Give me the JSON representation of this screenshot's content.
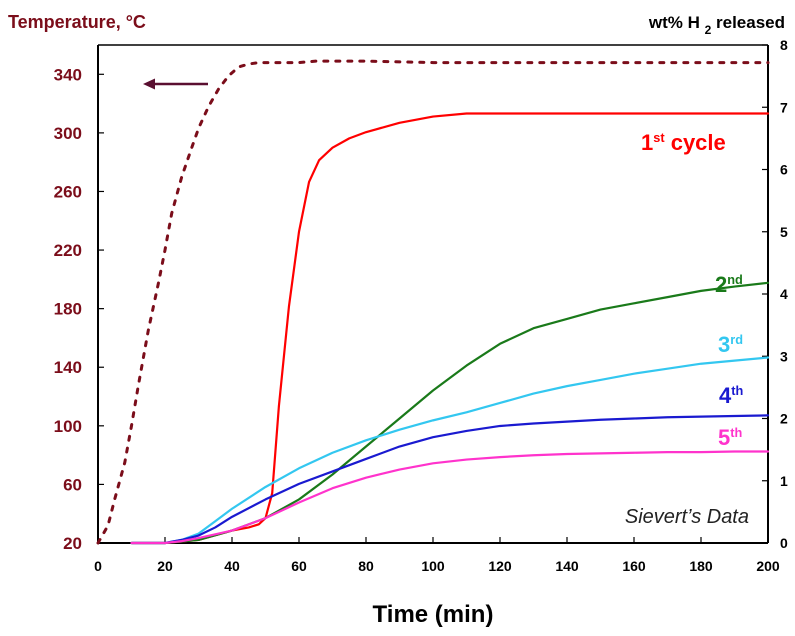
{
  "chart_data": {
    "type": "line",
    "title": "",
    "xlabel": "Time (min)",
    "ylabel_left": "Temperature, °C",
    "ylabel_right": {
      "prefix": "wt% H",
      "subscript": "2",
      "suffix": " released"
    },
    "xlim": [
      0,
      200
    ],
    "ylim_left": [
      20,
      360
    ],
    "ylim_right": [
      0,
      8
    ],
    "x_ticks": [
      0,
      20,
      40,
      60,
      80,
      100,
      120,
      140,
      160,
      180,
      200
    ],
    "y_left_ticks": [
      20,
      60,
      100,
      140,
      180,
      220,
      260,
      300,
      340
    ],
    "y_right_ticks": [
      0,
      1,
      2,
      3,
      4,
      5,
      6,
      7,
      8
    ],
    "grid": false,
    "annotation": "Sievert’s Data",
    "series": [
      {
        "name": "temperature",
        "axis": "left",
        "color": "#7b0d1a",
        "style": "dotted",
        "x": [
          0,
          3,
          5,
          8,
          10,
          12,
          15,
          18,
          20,
          22,
          25,
          28,
          30,
          33,
          36,
          39,
          42,
          45,
          48,
          50,
          55,
          60,
          65,
          70,
          80,
          100,
          120,
          140,
          160,
          180,
          200
        ],
        "y": [
          20,
          32,
          50,
          75,
          100,
          127,
          165,
          197,
          220,
          245,
          270,
          290,
          303,
          318,
          330,
          339,
          345,
          347,
          348,
          348,
          348,
          348,
          349,
          349,
          349,
          348,
          348,
          348,
          348,
          348,
          348
        ]
      },
      {
        "name": "1st cycle",
        "label_main": "1",
        "label_super": "st",
        "label_suffix": " cycle",
        "axis": "right",
        "color": "#ff0000",
        "style": "solid",
        "x": [
          10,
          20,
          30,
          40,
          45,
          48,
          50,
          52,
          54,
          57,
          60,
          63,
          66,
          70,
          75,
          80,
          90,
          100,
          110,
          120,
          140,
          160,
          180,
          200
        ],
        "y": [
          0,
          0,
          0.05,
          0.2,
          0.25,
          0.3,
          0.4,
          0.8,
          2.2,
          3.8,
          5.0,
          5.8,
          6.15,
          6.35,
          6.5,
          6.6,
          6.75,
          6.85,
          6.9,
          6.9,
          6.9,
          6.9,
          6.9,
          6.9
        ]
      },
      {
        "name": "2nd",
        "label_main": "2",
        "label_super": "nd",
        "axis": "right",
        "color": "#1a7a1a",
        "style": "solid",
        "x": [
          10,
          20,
          30,
          40,
          50,
          60,
          70,
          80,
          90,
          100,
          110,
          120,
          130,
          140,
          150,
          160,
          170,
          180,
          190,
          200
        ],
        "y": [
          0,
          0,
          0.05,
          0.2,
          0.4,
          0.7,
          1.1,
          1.55,
          2.0,
          2.45,
          2.85,
          3.2,
          3.45,
          3.6,
          3.75,
          3.85,
          3.95,
          4.05,
          4.12,
          4.18
        ]
      },
      {
        "name": "3rd",
        "label_main": "3",
        "label_super": "rd",
        "axis": "right",
        "color": "#33c7f0",
        "style": "solid",
        "x": [
          10,
          20,
          25,
          30,
          35,
          40,
          50,
          60,
          70,
          80,
          90,
          100,
          110,
          120,
          130,
          140,
          150,
          160,
          170,
          180,
          190,
          200
        ],
        "y": [
          0,
          0,
          0.05,
          0.15,
          0.35,
          0.55,
          0.9,
          1.2,
          1.45,
          1.65,
          1.82,
          1.97,
          2.1,
          2.25,
          2.4,
          2.52,
          2.62,
          2.72,
          2.8,
          2.88,
          2.93,
          2.98
        ]
      },
      {
        "name": "4th",
        "label_main": "4",
        "label_super": "th",
        "axis": "right",
        "color": "#1a1ad0",
        "style": "solid",
        "x": [
          10,
          20,
          25,
          30,
          35,
          40,
          50,
          60,
          70,
          80,
          90,
          100,
          110,
          120,
          130,
          140,
          150,
          160,
          170,
          180,
          190,
          200
        ],
        "y": [
          0,
          0,
          0.05,
          0.12,
          0.25,
          0.42,
          0.7,
          0.95,
          1.15,
          1.35,
          1.55,
          1.7,
          1.8,
          1.88,
          1.92,
          1.95,
          1.98,
          2.0,
          2.02,
          2.03,
          2.04,
          2.05
        ]
      },
      {
        "name": "5th",
        "label_main": "5",
        "label_super": "th",
        "axis": "right",
        "color": "#ff33cc",
        "style": "solid",
        "x": [
          10,
          20,
          25,
          30,
          40,
          50,
          60,
          70,
          80,
          90,
          100,
          110,
          120,
          130,
          140,
          150,
          160,
          170,
          180,
          190,
          200
        ],
        "y": [
          0,
          0,
          0.03,
          0.08,
          0.2,
          0.4,
          0.65,
          0.88,
          1.05,
          1.18,
          1.28,
          1.34,
          1.38,
          1.41,
          1.43,
          1.44,
          1.45,
          1.46,
          1.46,
          1.47,
          1.47
        ]
      }
    ]
  }
}
